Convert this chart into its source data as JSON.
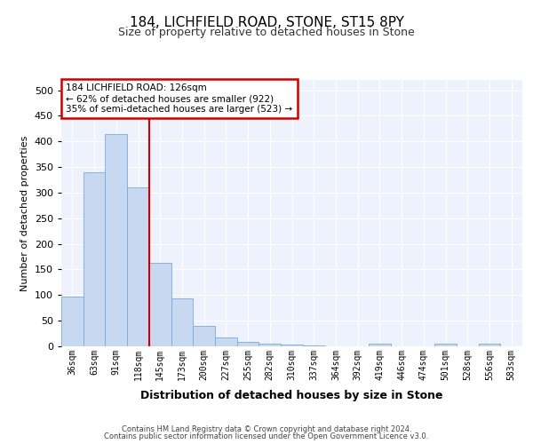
{
  "title1": "184, LICHFIELD ROAD, STONE, ST15 8PY",
  "title2": "Size of property relative to detached houses in Stone",
  "xlabel": "Distribution of detached houses by size in Stone",
  "ylabel": "Number of detached properties",
  "footer1": "Contains HM Land Registry data © Crown copyright and database right 2024.",
  "footer2": "Contains public sector information licensed under the Open Government Licence v3.0.",
  "annotation_line1": "184 LICHFIELD ROAD: 126sqm",
  "annotation_line2": "← 62% of detached houses are smaller (922)",
  "annotation_line3": "35% of semi-detached houses are larger (523) →",
  "bar_color": "#c8d8f0",
  "bar_edge_color": "#7aaadd",
  "marker_color": "#cc0000",
  "bin_labels": [
    "36sqm",
    "63sqm",
    "91sqm",
    "118sqm",
    "145sqm",
    "173sqm",
    "200sqm",
    "227sqm",
    "255sqm",
    "282sqm",
    "310sqm",
    "337sqm",
    "364sqm",
    "392sqm",
    "419sqm",
    "446sqm",
    "474sqm",
    "501sqm",
    "528sqm",
    "556sqm",
    "583sqm"
  ],
  "bar_values": [
    97,
    340,
    415,
    310,
    163,
    93,
    40,
    18,
    8,
    5,
    3,
    1,
    0,
    0,
    6,
    0,
    0,
    5,
    0,
    5,
    0
  ],
  "marker_bin_index": 3,
  "ylim": [
    0,
    520
  ],
  "yticks": [
    0,
    50,
    100,
    150,
    200,
    250,
    300,
    350,
    400,
    450,
    500
  ],
  "plot_bg_color": "#eef2fc",
  "grid_color": "#ffffff",
  "annotation_box_facecolor": "#ffffff",
  "annotation_box_edgecolor": "#cc0000",
  "title1_fontsize": 11,
  "title2_fontsize": 9,
  "ylabel_fontsize": 8,
  "xlabel_fontsize": 9,
  "tick_fontsize": 7,
  "footer_fontsize": 6
}
